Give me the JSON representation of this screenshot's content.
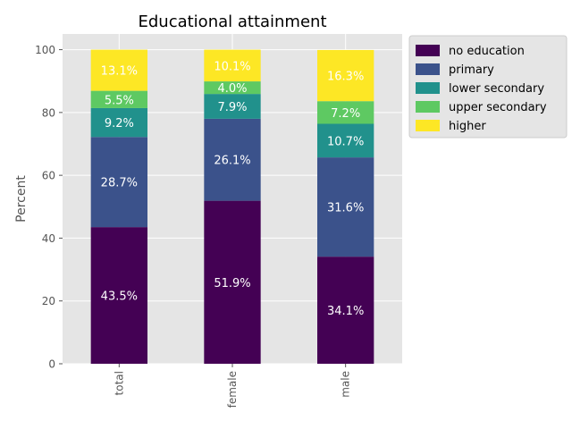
{
  "chart_data": {
    "type": "bar",
    "stacked": true,
    "title": "Educational attainment",
    "xlabel": "",
    "ylabel": "Percent",
    "ylim": [
      0,
      105
    ],
    "yticks": [
      0,
      20,
      40,
      60,
      80,
      100
    ],
    "categories": [
      "total",
      "female",
      "male"
    ],
    "grid": true,
    "legend_position": "outside-top-right",
    "series": [
      {
        "name": "no education",
        "color": "#440154",
        "values": [
          43.5,
          51.9,
          34.1
        ],
        "labels": [
          "43.5%",
          "51.9%",
          "34.1%"
        ]
      },
      {
        "name": "primary",
        "color": "#3b528b",
        "values": [
          28.7,
          26.1,
          31.6
        ],
        "labels": [
          "28.7%",
          "26.1%",
          "31.6%"
        ]
      },
      {
        "name": "lower secondary",
        "color": "#21918c",
        "values": [
          9.2,
          7.9,
          10.7
        ],
        "labels": [
          "9.2%",
          "7.9%",
          "10.7%"
        ]
      },
      {
        "name": "upper secondary",
        "color": "#5ec962",
        "values": [
          5.5,
          4.0,
          7.2
        ],
        "labels": [
          "5.5%",
          "4.0%",
          "7.2%"
        ]
      },
      {
        "name": "higher",
        "color": "#fde725",
        "values": [
          13.1,
          10.1,
          16.3
        ],
        "labels": [
          "13.1%",
          "10.1%",
          "16.3%"
        ]
      }
    ]
  }
}
